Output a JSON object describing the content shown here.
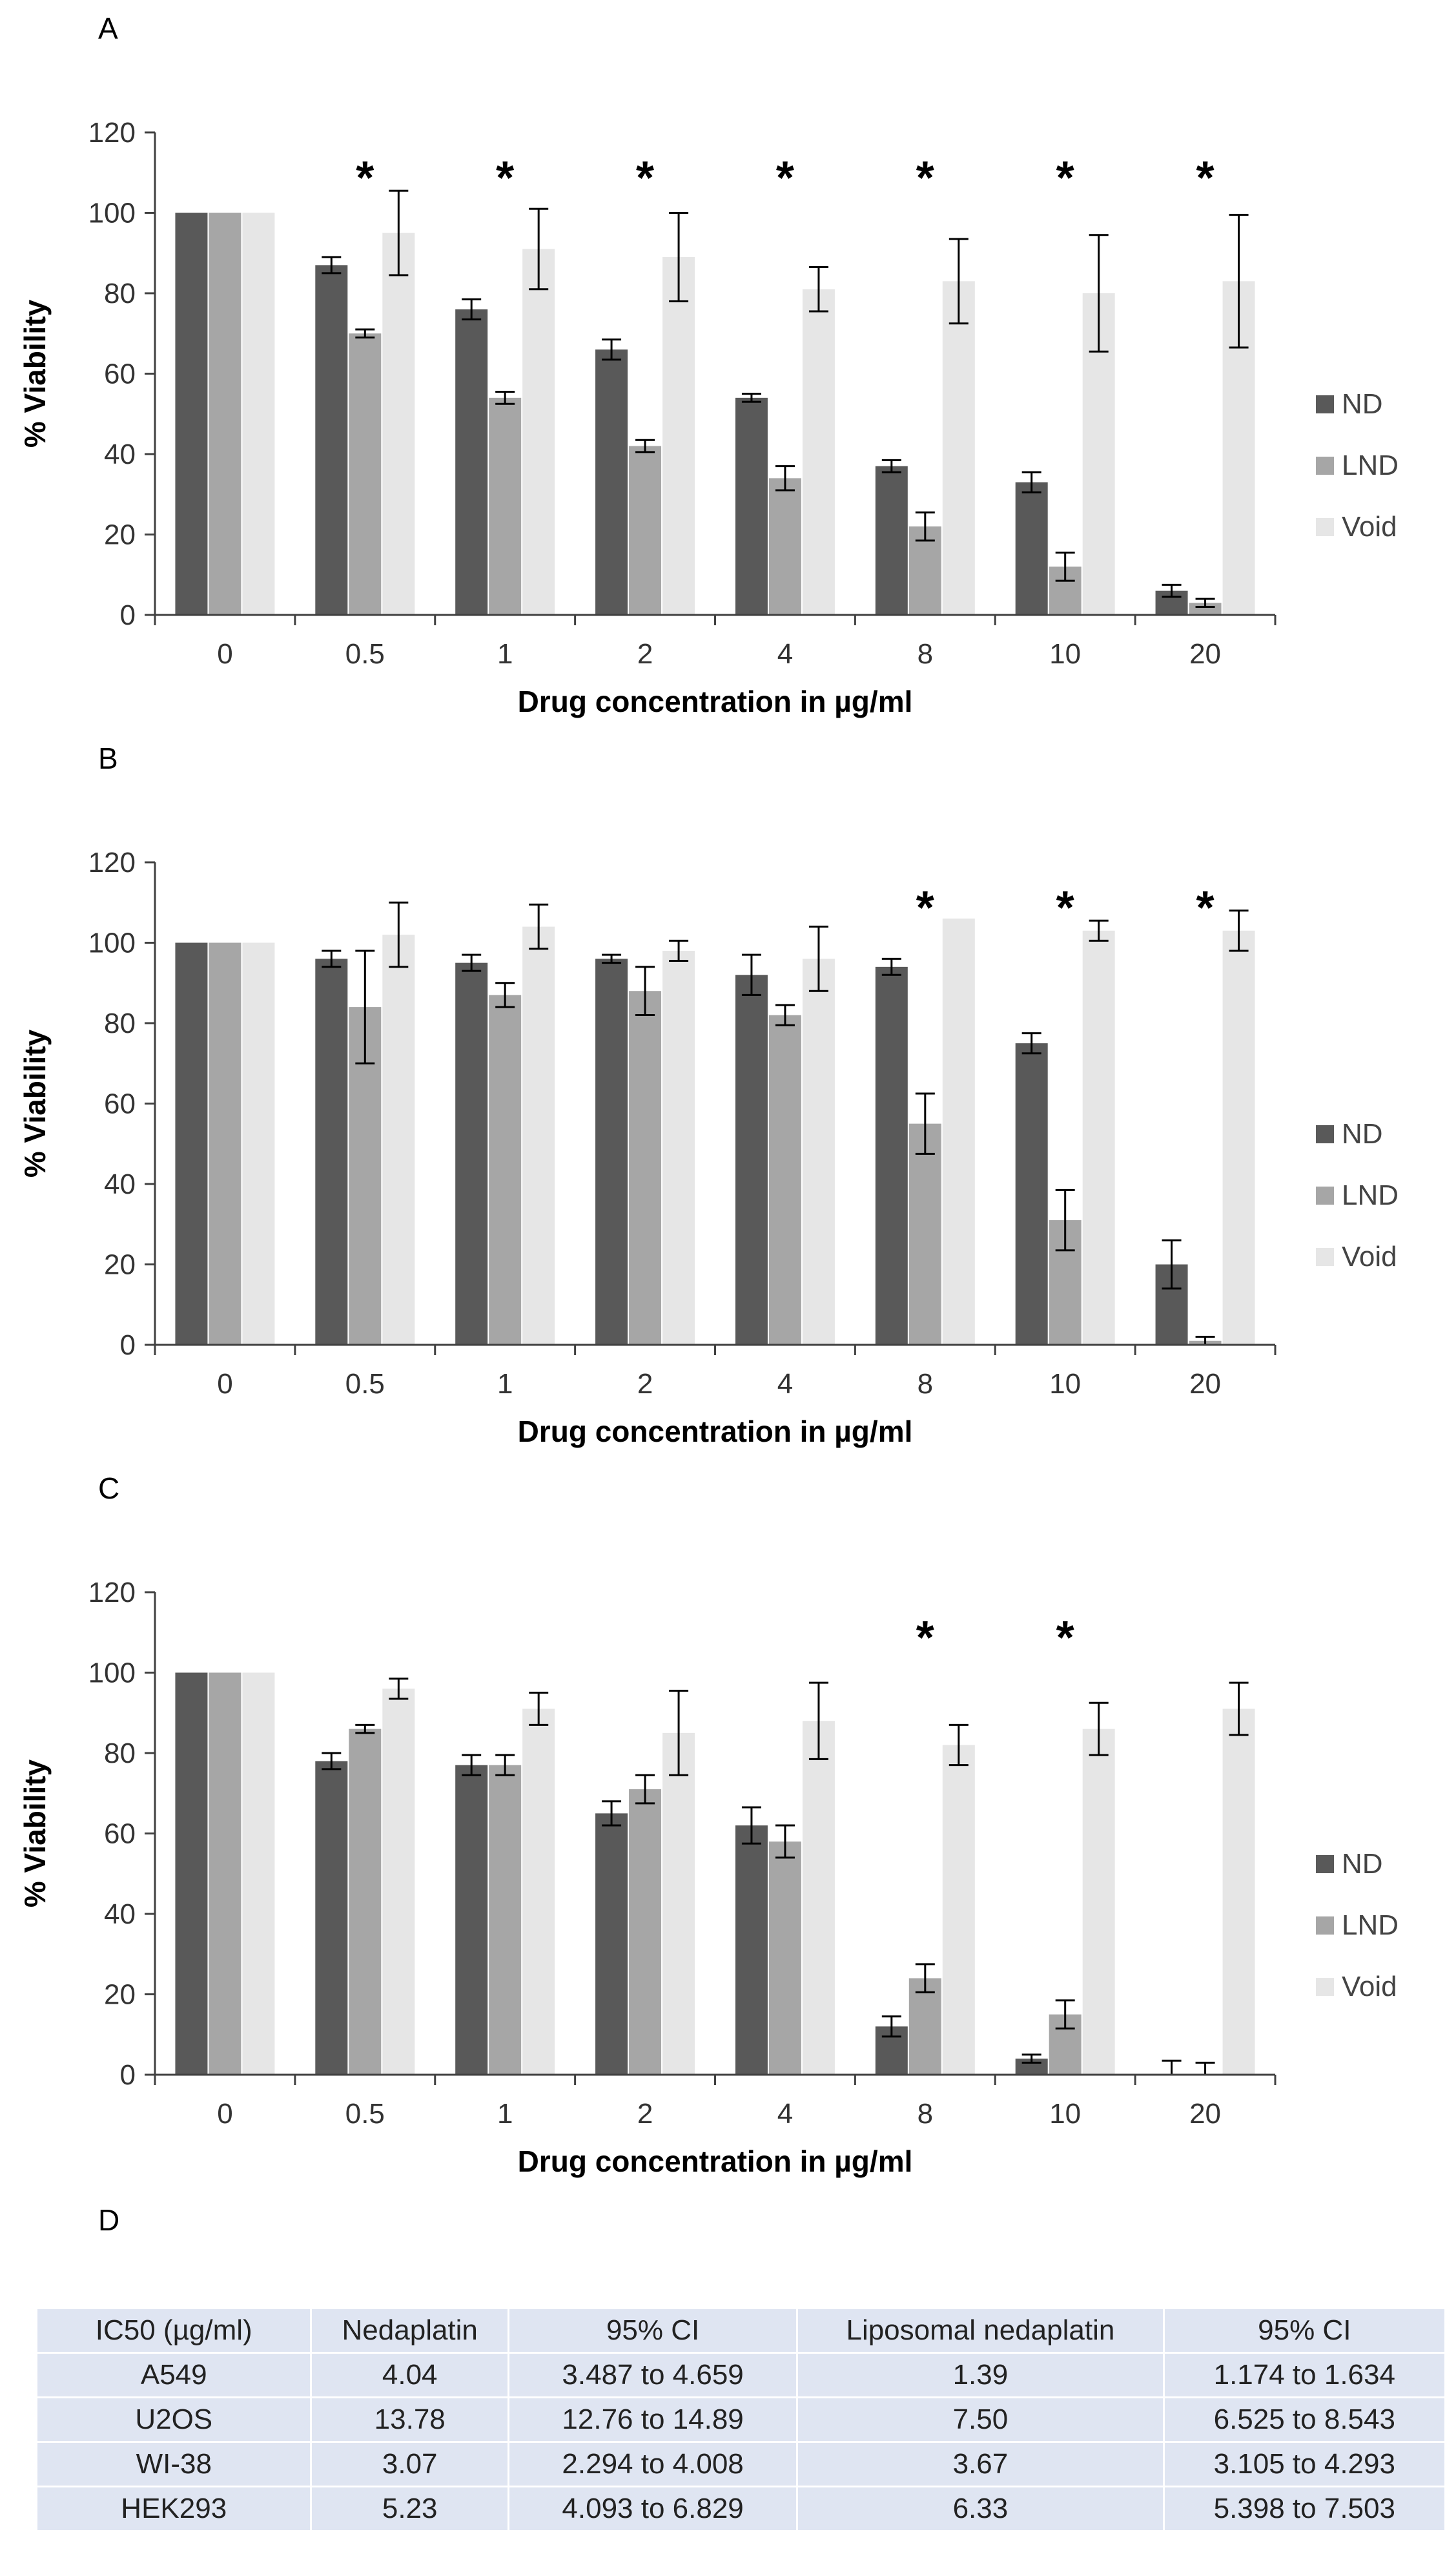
{
  "colors": {
    "ND": "#595959",
    "LND": "#a6a6a6",
    "Void": "#e6e6e6",
    "axis": "#404040",
    "table_bg": "#dfe5f2"
  },
  "chart_data": [
    {
      "panel": "A",
      "type": "bar",
      "categories": [
        "0",
        "0.5",
        "1",
        "2",
        "4",
        "8",
        "10",
        "20"
      ],
      "series": [
        {
          "name": "ND",
          "values": [
            100,
            87,
            76,
            66,
            54,
            37,
            33,
            6
          ],
          "errors": [
            0,
            2,
            2.5,
            2.5,
            1,
            1.5,
            2.5,
            1.5
          ]
        },
        {
          "name": "LND",
          "values": [
            100,
            70,
            54,
            42,
            34,
            22,
            12,
            3
          ],
          "errors": [
            0,
            1,
            1.5,
            1.5,
            3,
            3.5,
            3.5,
            1
          ]
        },
        {
          "name": "Void",
          "values": [
            100,
            95,
            91,
            89,
            81,
            83,
            80,
            83
          ],
          "errors": [
            0,
            10.5,
            10,
            11,
            5.5,
            10.5,
            14.5,
            16.5
          ]
        }
      ],
      "significance": [
        "",
        "*",
        "*",
        "*",
        "*",
        "*",
        "*",
        "*"
      ],
      "ylabel": "% Viability",
      "xlabel": "Drug concentration in µg/ml",
      "yticks": [
        "0",
        "20",
        "40",
        "60",
        "80",
        "100",
        "120"
      ],
      "ylim": [
        0,
        120
      ],
      "legend": [
        "ND",
        "LND",
        "Void"
      ]
    },
    {
      "panel": "B",
      "type": "bar",
      "categories": [
        "0",
        "0.5",
        "1",
        "2",
        "4",
        "8",
        "10",
        "20"
      ],
      "series": [
        {
          "name": "ND",
          "values": [
            100,
            96,
            95,
            96,
            92,
            94,
            75,
            20
          ],
          "errors": [
            0,
            2,
            2,
            1,
            5,
            2,
            2.5,
            6
          ]
        },
        {
          "name": "LND",
          "values": [
            100,
            84,
            87,
            88,
            82,
            55,
            31,
            1
          ],
          "errors": [
            0,
            14,
            3,
            6,
            2.5,
            7.5,
            7.5,
            1
          ]
        },
        {
          "name": "Void",
          "values": [
            100,
            102,
            104,
            98,
            96,
            106,
            103,
            103
          ],
          "errors": [
            0,
            8,
            5.5,
            2.5,
            8,
            0,
            2.5,
            5
          ]
        }
      ],
      "significance": [
        "",
        "",
        "",
        "",
        "",
        "*",
        "*",
        "*"
      ],
      "ylabel": "% Viability",
      "xlabel": "Drug concentration in µg/ml",
      "yticks": [
        "0",
        "20",
        "40",
        "60",
        "80",
        "100",
        "120"
      ],
      "ylim": [
        0,
        120
      ],
      "legend": [
        "ND",
        "LND",
        "Void"
      ]
    },
    {
      "panel": "C",
      "type": "bar",
      "categories": [
        "0",
        "0.5",
        "1",
        "2",
        "4",
        "8",
        "10",
        "20"
      ],
      "series": [
        {
          "name": "ND",
          "values": [
            100,
            78,
            77,
            65,
            62,
            12,
            4,
            0
          ],
          "errors": [
            0,
            2,
            2.5,
            3,
            4.5,
            2.5,
            1,
            3.5
          ]
        },
        {
          "name": "LND",
          "values": [
            100,
            86,
            77,
            71,
            58,
            24,
            15,
            0
          ],
          "errors": [
            0,
            1,
            2.5,
            3.5,
            4,
            3.5,
            3.5,
            3
          ]
        },
        {
          "name": "Void",
          "values": [
            100,
            96,
            91,
            85,
            88,
            82,
            86,
            91
          ],
          "errors": [
            0,
            2.5,
            4,
            10.5,
            9.5,
            5,
            6.5,
            6.5
          ]
        }
      ],
      "significance": [
        "",
        "",
        "",
        "",
        "",
        "*",
        "*",
        ""
      ],
      "ylabel": "% Viability",
      "xlabel": "Drug concentration in µg/ml",
      "yticks": [
        "0",
        "20",
        "40",
        "60",
        "80",
        "100",
        "120"
      ],
      "ylim": [
        0,
        120
      ],
      "legend": [
        "ND",
        "LND",
        "Void"
      ]
    },
    {
      "panel": "D",
      "type": "table",
      "columns": [
        "IC50 (µg/ml)",
        "Nedaplatin",
        "95% CI",
        "Liposomal nedaplatin",
        "95% CI"
      ],
      "rows": [
        [
          "A549",
          "4.04",
          "3.487 to 4.659",
          "1.39",
          "1.174 to 1.634"
        ],
        [
          "U2OS",
          "13.78",
          "12.76 to 14.89",
          "7.50",
          "6.525 to 8.543"
        ],
        [
          "WI-38",
          "3.07",
          "2.294 to 4.008",
          "3.67",
          "3.105 to 4.293"
        ],
        [
          "HEK293",
          "5.23",
          "4.093 to 6.829",
          "6.33",
          "5.398 to 7.503"
        ]
      ]
    }
  ],
  "table_caption": "D"
}
